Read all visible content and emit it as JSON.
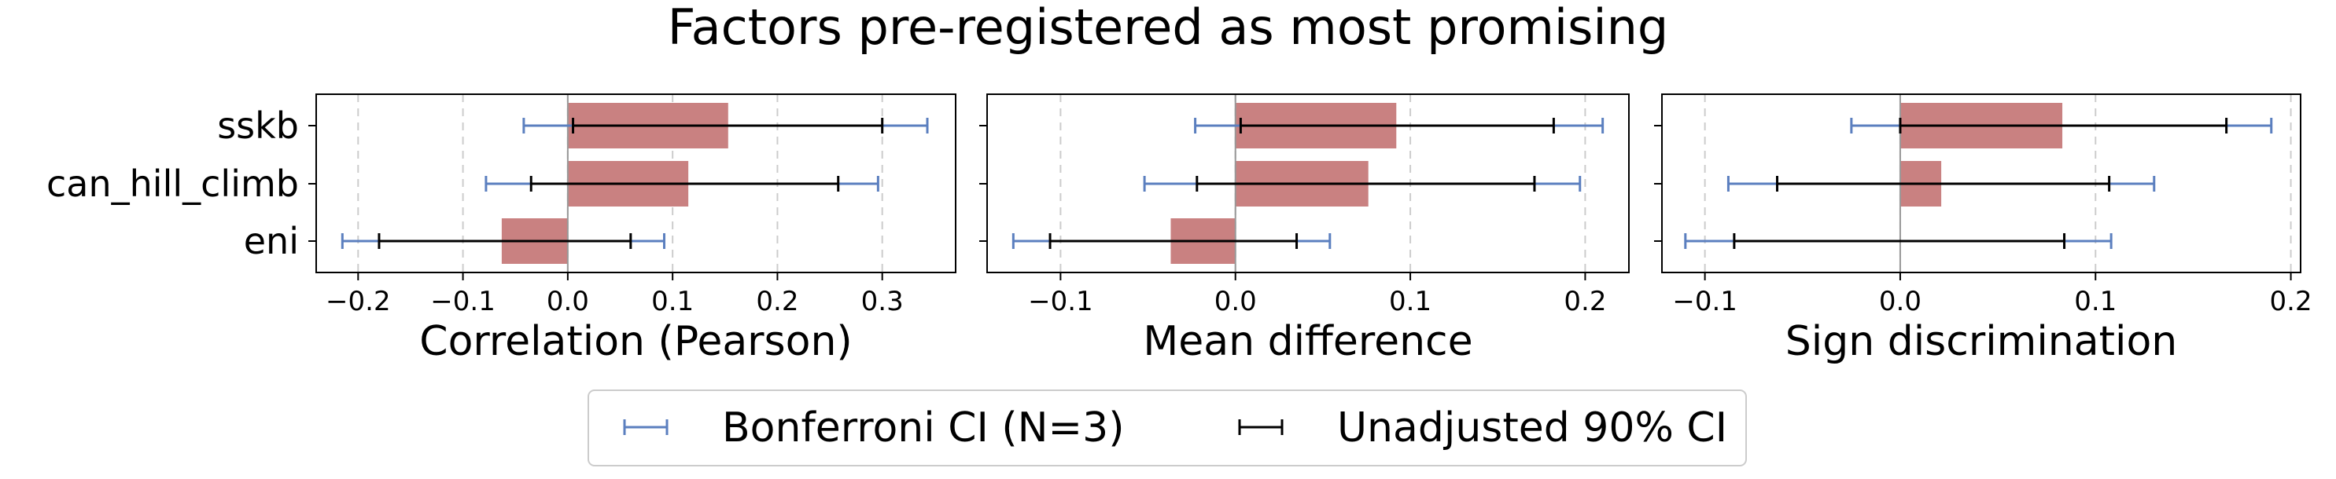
{
  "title": "Factors pre-registered as most promising",
  "colors": {
    "bar": "#c98181",
    "bonferroni": "#5b7fbf",
    "unadjusted": "#000000",
    "grid": "#cccccc",
    "zero_line": "#999999"
  },
  "legend": {
    "placement": "bottom-center",
    "items": [
      {
        "label": "Bonferroni CI (N=3)",
        "color": "#5b7fbf"
      },
      {
        "label": "Unadjusted 90% CI",
        "color": "#000000"
      }
    ]
  },
  "chart_data": [
    {
      "type": "bar",
      "orientation": "horizontal",
      "categories": [
        "sskb",
        "can_hill_climb",
        "eni"
      ],
      "values": [
        0.153,
        0.115,
        -0.063
      ],
      "unadjusted_ci": [
        [
          0.005,
          0.3
        ],
        [
          -0.035,
          0.258
        ],
        [
          -0.18,
          0.06
        ]
      ],
      "bonferroni_ci": [
        [
          -0.042,
          0.343
        ],
        [
          -0.078,
          0.296
        ],
        [
          -0.215,
          0.092
        ]
      ],
      "xlabel": "Correlation (Pearson)",
      "xlim": [
        -0.24,
        0.37
      ],
      "xticks": [
        -0.2,
        -0.1,
        0.0,
        0.1,
        0.2,
        0.3
      ],
      "xtick_labels": [
        "−0.2",
        "−0.1",
        "0.0",
        "0.1",
        "0.2",
        "0.3"
      ],
      "grid": "x-dashed"
    },
    {
      "type": "bar",
      "orientation": "horizontal",
      "categories": [
        "sskb",
        "can_hill_climb",
        "eni"
      ],
      "values": [
        0.092,
        0.076,
        -0.037
      ],
      "unadjusted_ci": [
        [
          0.003,
          0.182
        ],
        [
          -0.022,
          0.171
        ],
        [
          -0.106,
          0.035
        ]
      ],
      "bonferroni_ci": [
        [
          -0.023,
          0.21
        ],
        [
          -0.052,
          0.197
        ],
        [
          -0.127,
          0.054
        ]
      ],
      "xlabel": "Mean difference",
      "xlim": [
        -0.142,
        0.225
      ],
      "xticks": [
        -0.1,
        0.0,
        0.1,
        0.2
      ],
      "xtick_labels": [
        "−0.1",
        "0.0",
        "0.1",
        "0.2"
      ],
      "grid": "x-dashed"
    },
    {
      "type": "bar",
      "orientation": "horizontal",
      "categories": [
        "sskb",
        "can_hill_climb",
        "eni"
      ],
      "values": [
        0.083,
        0.021,
        0.0
      ],
      "unadjusted_ci": [
        [
          0.0,
          0.167
        ],
        [
          -0.063,
          0.107
        ],
        [
          -0.085,
          0.084
        ]
      ],
      "bonferroni_ci": [
        [
          -0.025,
          0.19
        ],
        [
          -0.088,
          0.13
        ],
        [
          -0.11,
          0.108
        ]
      ],
      "xlabel": "Sign discrimination",
      "xlim": [
        -0.122,
        0.205
      ],
      "xticks": [
        -0.1,
        0.0,
        0.1,
        0.2
      ],
      "xtick_labels": [
        "−0.1",
        "0.0",
        "0.1",
        "0.2"
      ],
      "grid": "x-dashed"
    }
  ]
}
